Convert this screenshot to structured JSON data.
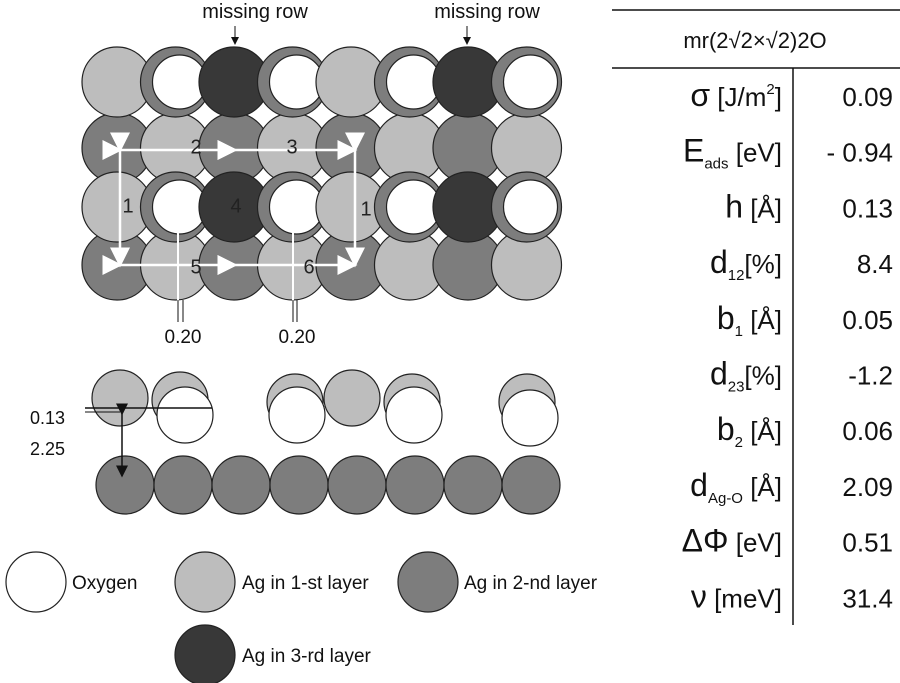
{
  "diagram": {
    "top_labels": [
      "missing row",
      "missing row"
    ],
    "site_labels": [
      "1",
      "2",
      "3",
      "1",
      "4",
      "5",
      "6"
    ],
    "shift_labels": [
      "0.20",
      "0.20"
    ],
    "side_labels": [
      "0.13",
      "2.25"
    ]
  },
  "legend": [
    "Oxygen",
    "Ag in 1-st layer",
    "Ag in 2-nd layer",
    "Ag in 3-rd layer"
  ],
  "table": {
    "header": "mr(2√2×√2)2O",
    "rows": [
      {
        "symbol": "σ",
        "unit": " [J/m",
        "sup": "2",
        "close": "]",
        "value": "0.09"
      },
      {
        "symbol": "E",
        "sub": "ads",
        "unit": " [eV]",
        "value": "- 0.94"
      },
      {
        "symbol": "h",
        "unit": " [Å]",
        "value": "0.13"
      },
      {
        "symbol": "d",
        "sub": "12",
        "unit": "[%]",
        "value": "8.4"
      },
      {
        "symbol": "b",
        "sub": "1",
        "unit": " [Å]",
        "value": "0.05"
      },
      {
        "symbol": "d",
        "sub": "23",
        "unit": "[%]",
        "value": "-1.2"
      },
      {
        "symbol": "b",
        "sub": "2",
        "unit": " [Å]",
        "value": "0.06"
      },
      {
        "symbol": "d",
        "sub": "Ag-O",
        "unit": " [Å]",
        "value": "2.09"
      },
      {
        "symbol": "ΔΦ",
        "unit": " [eV]",
        "value": "0.51"
      },
      {
        "symbol": "ν",
        "unit": " [meV]",
        "value": "31.4"
      }
    ]
  }
}
